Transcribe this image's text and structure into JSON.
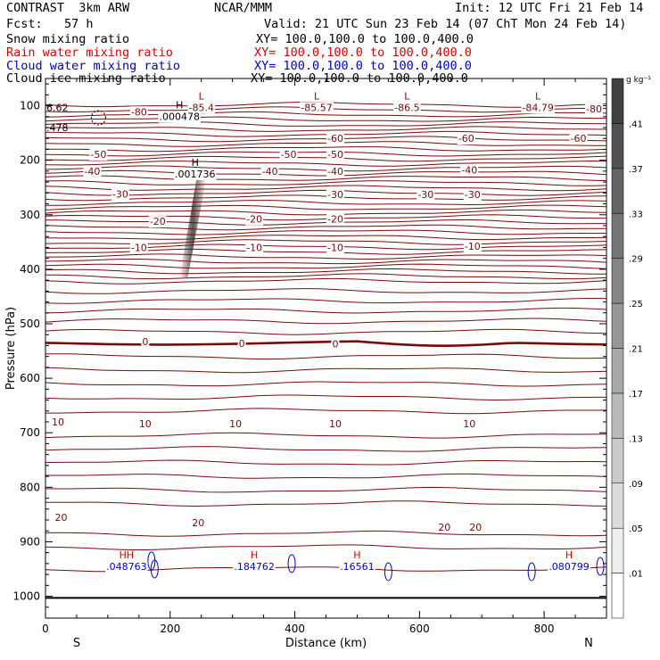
{
  "header": {
    "model": "CONTRAST  3km ARW",
    "center": "NCAR/MMM",
    "init": "Init: 12 UTC Fri 21 Feb 14",
    "fcst": "Fcst:   57 h",
    "valid": "Valid: 21 UTC Sun 23 Feb 14 (07 ChT Mon 24 Feb 14)"
  },
  "fields": [
    {
      "name": "Snow mixing ratio",
      "xy": "XY= 100.0,100.0 to 100.0,400.0",
      "color": "#000000"
    },
    {
      "name": "Rain water mixing ratio",
      "xy": "XY= 100.0,100.0 to 100.0,400.0",
      "color": "#e00000"
    },
    {
      "name": "Cloud water mixing ratio",
      "xy": "XY= 100.0,100.0 to 100.0,400.0",
      "color": "#0000cc"
    },
    {
      "name": "Cloud ice mixing ratio",
      "xy": "XY= 100.0,100.0 to 100.0,400.0",
      "color": "#000000"
    }
  ],
  "chart_data": {
    "type": "contour",
    "xlabel": "Distance (km)",
    "ylabel": "Pressure (hPa)",
    "xlim": [
      0,
      900
    ],
    "ylim": [
      1040,
      50
    ],
    "x_ticks": [
      0,
      200,
      400,
      600,
      800
    ],
    "y_ticks": [
      100,
      200,
      300,
      400,
      500,
      600,
      700,
      800,
      900,
      1000
    ],
    "x_end_labels": {
      "left": "S",
      "right": "N"
    },
    "colorbar": {
      "unit": "g kg⁻¹",
      "labels": [
        ".01",
        ".05",
        ".09",
        ".13",
        ".17",
        ".21",
        ".25",
        ".29",
        ".33",
        ".37",
        ".41"
      ]
    },
    "temperature_contours": [
      {
        "label": "-80",
        "p": 105
      },
      {
        "label": "-60",
        "p": 160
      },
      {
        "label": "-50",
        "p": 190
      },
      {
        "label": "-40",
        "p": 220
      },
      {
        "label": "-30",
        "p": 262
      },
      {
        "label": "-20",
        "p": 308
      },
      {
        "label": "-10",
        "p": 360
      },
      {
        "label": "0",
        "p": 535
      },
      {
        "label": "10",
        "p": 683
      },
      {
        "label": "20",
        "p": 865
      }
    ],
    "contour_labels": [
      {
        "text": "-80",
        "x": 150,
        "p": 111
      },
      {
        "text": "-80",
        "x": 880,
        "p": 106
      },
      {
        "text": "-60",
        "x": 465,
        "p": 160
      },
      {
        "text": "-60",
        "x": 675,
        "p": 160
      },
      {
        "text": "-60",
        "x": 855,
        "p": 160
      },
      {
        "text": "-50",
        "x": 85,
        "p": 189
      },
      {
        "text": "-50",
        "x": 390,
        "p": 189
      },
      {
        "text": "-50",
        "x": 465,
        "p": 189
      },
      {
        "text": "-40",
        "x": 75,
        "p": 220
      },
      {
        "text": "-40",
        "x": 360,
        "p": 220
      },
      {
        "text": "-40",
        "x": 465,
        "p": 220
      },
      {
        "text": "-40",
        "x": 680,
        "p": 218
      },
      {
        "text": "-30",
        "x": 120,
        "p": 262
      },
      {
        "text": "-30",
        "x": 465,
        "p": 263
      },
      {
        "text": "-30",
        "x": 610,
        "p": 263
      },
      {
        "text": "-30",
        "x": 685,
        "p": 263
      },
      {
        "text": "-20",
        "x": 180,
        "p": 312
      },
      {
        "text": "-20",
        "x": 335,
        "p": 308
      },
      {
        "text": "-20",
        "x": 465,
        "p": 308
      },
      {
        "text": "-10",
        "x": 150,
        "p": 360
      },
      {
        "text": "-10",
        "x": 335,
        "p": 360
      },
      {
        "text": "-10",
        "x": 465,
        "p": 360
      },
      {
        "text": "-10",
        "x": 685,
        "p": 358
      },
      {
        "text": "0",
        "x": 160,
        "p": 533
      },
      {
        "text": "0",
        "x": 315,
        "p": 536
      },
      {
        "text": "0",
        "x": 465,
        "p": 537
      },
      {
        "text": "10",
        "x": 20,
        "p": 680
      },
      {
        "text": "10",
        "x": 160,
        "p": 683
      },
      {
        "text": "10",
        "x": 305,
        "p": 683
      },
      {
        "text": "10",
        "x": 465,
        "p": 683
      },
      {
        "text": "10",
        "x": 680,
        "p": 683
      },
      {
        "text": "20",
        "x": 25,
        "p": 855
      },
      {
        "text": "20",
        "x": 245,
        "p": 865
      },
      {
        "text": "20",
        "x": 640,
        "p": 873
      },
      {
        "text": "20",
        "x": 690,
        "p": 873
      }
    ],
    "extrema_labels": [
      {
        "marker": "L",
        "value": "-85.4",
        "x": 250,
        "p": 98
      },
      {
        "marker": "L",
        "value": "-85.57",
        "x": 435,
        "p": 98
      },
      {
        "marker": "L",
        "value": "-86.5",
        "x": 580,
        "p": 98
      },
      {
        "marker": "L",
        "value": "-84.79",
        "x": 790,
        "p": 98
      },
      {
        "marker": "H",
        "value": ".000478",
        "x": 215,
        "p": 115
      },
      {
        "marker": "H",
        "value": ".001736",
        "x": 240,
        "p": 220
      },
      {
        "marker": "H",
        "value": ".184762",
        "x": 335,
        "p": 940
      },
      {
        "marker": "H",
        "value": ".16561",
        "x": 500,
        "p": 940
      },
      {
        "marker": "H",
        "value": ".080799",
        "x": 840,
        "p": 940
      },
      {
        "marker": "HH",
        "value": ".048763",
        "x": 130,
        "p": 940
      }
    ],
    "edge_labels": [
      {
        "text": "6.62",
        "x": 0,
        "p": 103
      },
      {
        "text": ".478",
        "x": 0,
        "p": 140
      }
    ],
    "cloud_ice_max_gkg": 0.4,
    "surface_pressure_hPa": 1003
  }
}
